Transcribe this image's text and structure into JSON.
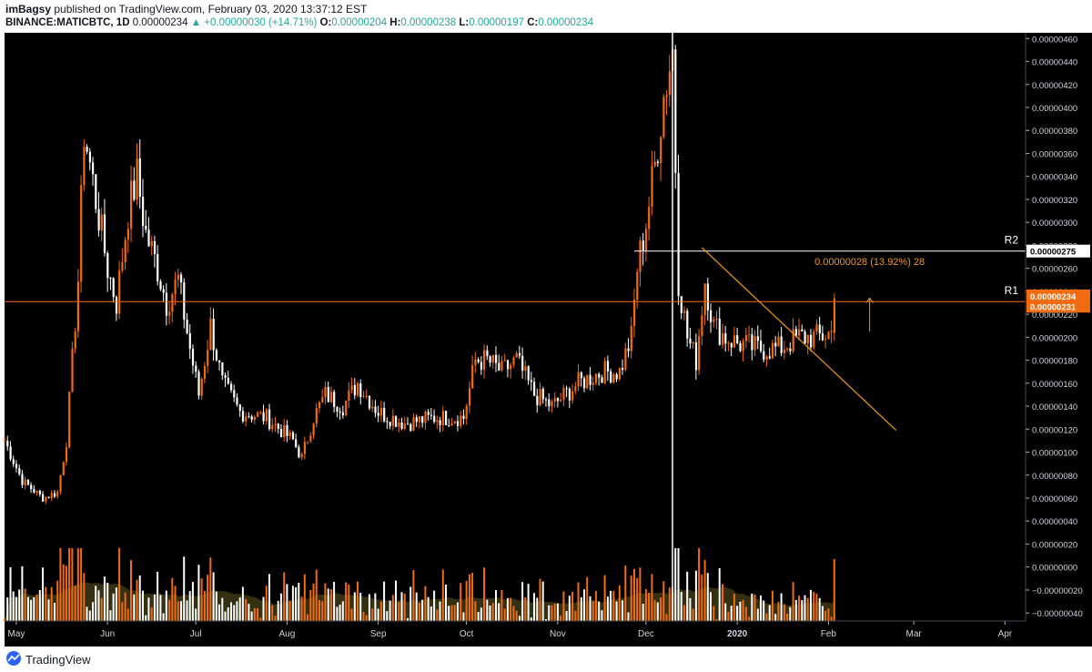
{
  "header": {
    "publisher": "imBagsy",
    "published_text": "published on TradingView.com, February 03, 2020 13:37:12 EST",
    "symbol": "BINANCE:MATICBTC, 1D",
    "last": "0.00000234",
    "change": "▲ +0.00000030 (+14.71%)",
    "o_label": "O:",
    "o_value": "0.00000204",
    "h_label": "H:",
    "h_value": "0.00000238",
    "l_label": "L:",
    "l_value": "0.00000197",
    "c_label": "C:",
    "c_value": "0.00000234"
  },
  "footer": {
    "brand": "TradingView",
    "logo_icon": "tradingview-logo-icon"
  },
  "colors": {
    "up": "#f26b0f",
    "down": "#ffffff",
    "background": "#000000",
    "r1": "#f26b0f",
    "r2": "#ffffff",
    "trendline": "#f5961b",
    "volume_ma_fill": "#3b3513",
    "positive": "#26a69a"
  },
  "chart_data": {
    "type": "candlestick",
    "y_axis": {
      "range": [
        -4.7e-07,
        4.65e-06
      ],
      "ticks": [
        "0.00000460",
        "0.00000440",
        "0.00000420",
        "0.00000400",
        "0.00000380",
        "0.00000360",
        "0.00000340",
        "0.00000320",
        "0.00000300",
        "0.00000280",
        "0.00000260",
        "0.00000240",
        "0.00000220",
        "0.00000200",
        "0.00000180",
        "0.00000160",
        "0.00000140",
        "0.00000120",
        "0.00000100",
        "0.00000080",
        "0.00000060",
        "0.00000040",
        "0.00000020",
        "0.00000000",
        "−0.00000020",
        "−0.00000040"
      ]
    },
    "x_axis": {
      "labels": [
        "May",
        "Jun",
        "Jul",
        "Aug",
        "Sep",
        "Oct",
        "Nov",
        "Dec",
        "2020",
        "Feb",
        "Mar",
        "Apr"
      ],
      "label_dates": [
        "2019-05-01",
        "2019-06-01",
        "2019-07-01",
        "2019-08-01",
        "2019-09-01",
        "2019-10-01",
        "2019-11-01",
        "2019-12-01",
        "2020-01-01",
        "2020-02-01",
        "2020-03-01",
        "2020-04-01"
      ],
      "range": [
        "2019-04-27",
        "2020-04-08"
      ]
    },
    "series_anchor_closes": [
      [
        "2019-04-27",
        1.1e-06
      ],
      [
        "2019-05-03",
        7.5e-07
      ],
      [
        "2019-05-10",
        6e-07
      ],
      [
        "2019-05-15",
        6.5e-07
      ],
      [
        "2019-05-18",
        1.1e-06
      ],
      [
        "2019-05-20",
        1.8e-06
      ],
      [
        "2019-05-22",
        2.5e-06
      ],
      [
        "2019-05-24",
        3.8e-06
      ],
      [
        "2019-05-26",
        3.5e-06
      ],
      [
        "2019-05-28",
        3.2e-06
      ],
      [
        "2019-06-01",
        2.6e-06
      ],
      [
        "2019-06-04",
        2.3e-06
      ],
      [
        "2019-06-08",
        3.1e-06
      ],
      [
        "2019-06-11",
        3.4e-06
      ],
      [
        "2019-06-14",
        2.9e-06
      ],
      [
        "2019-06-18",
        2.6e-06
      ],
      [
        "2019-06-21",
        2.3e-06
      ],
      [
        "2019-06-25",
        2.5e-06
      ],
      [
        "2019-06-29",
        1.9e-06
      ],
      [
        "2019-07-02",
        1.5e-06
      ],
      [
        "2019-07-06",
        2.1e-06
      ],
      [
        "2019-07-10",
        1.6e-06
      ],
      [
        "2019-07-16",
        1.35e-06
      ],
      [
        "2019-07-25",
        1.3e-06
      ],
      [
        "2019-08-03",
        1.1e-06
      ],
      [
        "2019-08-06",
        9.5e-07
      ],
      [
        "2019-08-10",
        1.3e-06
      ],
      [
        "2019-08-14",
        1.5e-06
      ],
      [
        "2019-08-20",
        1.4e-06
      ],
      [
        "2019-08-25",
        1.6e-06
      ],
      [
        "2019-09-01",
        1.35e-06
      ],
      [
        "2019-09-10",
        1.25e-06
      ],
      [
        "2019-09-20",
        1.3e-06
      ],
      [
        "2019-09-30",
        1.3e-06
      ],
      [
        "2019-10-04",
        1.8e-06
      ],
      [
        "2019-10-08",
        1.8e-06
      ],
      [
        "2019-10-13",
        1.7e-06
      ],
      [
        "2019-10-18",
        1.8e-06
      ],
      [
        "2019-10-24",
        1.5e-06
      ],
      [
        "2019-10-30",
        1.4e-06
      ],
      [
        "2019-11-08",
        1.6e-06
      ],
      [
        "2019-11-16",
        1.7e-06
      ],
      [
        "2019-11-22",
        1.7e-06
      ],
      [
        "2019-11-26",
        2e-06
      ],
      [
        "2019-11-28",
        2.6e-06
      ],
      [
        "2019-12-01",
        3e-06
      ],
      [
        "2019-12-04",
        3.5e-06
      ],
      [
        "2019-12-07",
        4.1e-06
      ],
      [
        "2019-12-10",
        4.5e-06
      ],
      [
        "2019-12-12",
        2.5e-06
      ],
      [
        "2019-12-15",
        2e-06
      ],
      [
        "2019-12-18",
        1.8e-06
      ],
      [
        "2019-12-21",
        2.5e-06
      ],
      [
        "2019-12-24",
        2.1e-06
      ],
      [
        "2019-12-28",
        2e-06
      ],
      [
        "2020-01-01",
        1.95e-06
      ],
      [
        "2020-01-08",
        1.9e-06
      ],
      [
        "2020-01-15",
        1.9e-06
      ],
      [
        "2020-01-22",
        2e-06
      ],
      [
        "2020-01-28",
        2e-06
      ],
      [
        "2020-02-02",
        2.04e-06
      ],
      [
        "2020-02-03",
        2.34e-06
      ]
    ],
    "last_bar": {
      "date": "2020-02-03",
      "open": 2.04e-06,
      "high": 2.38e-06,
      "low": 1.97e-06,
      "close": 2.34e-06
    },
    "horizontal_lines": [
      {
        "name": "R1",
        "value": 2.31e-06,
        "price_label": "0.00000231",
        "last_price_label": "0.00000234"
      },
      {
        "name": "R2",
        "value": 2.75e-06,
        "price_label": "0.00000275",
        "start": "2019-11-27"
      }
    ],
    "trendline": {
      "from": [
        "2019-12-20",
        2.78e-06
      ],
      "to": [
        "2020-02-24",
        1.19e-06
      ]
    },
    "measure_annotation": {
      "text": "0.00000028 (13.92%) 28",
      "date": "2020-02-15",
      "from_value": 2.05e-06,
      "to_value": 2.34e-06
    },
    "vertical_marker": {
      "date": "2019-12-10",
      "style": "white line from price area into volume"
    },
    "volume": {
      "visible": true,
      "moving_average": true
    }
  }
}
